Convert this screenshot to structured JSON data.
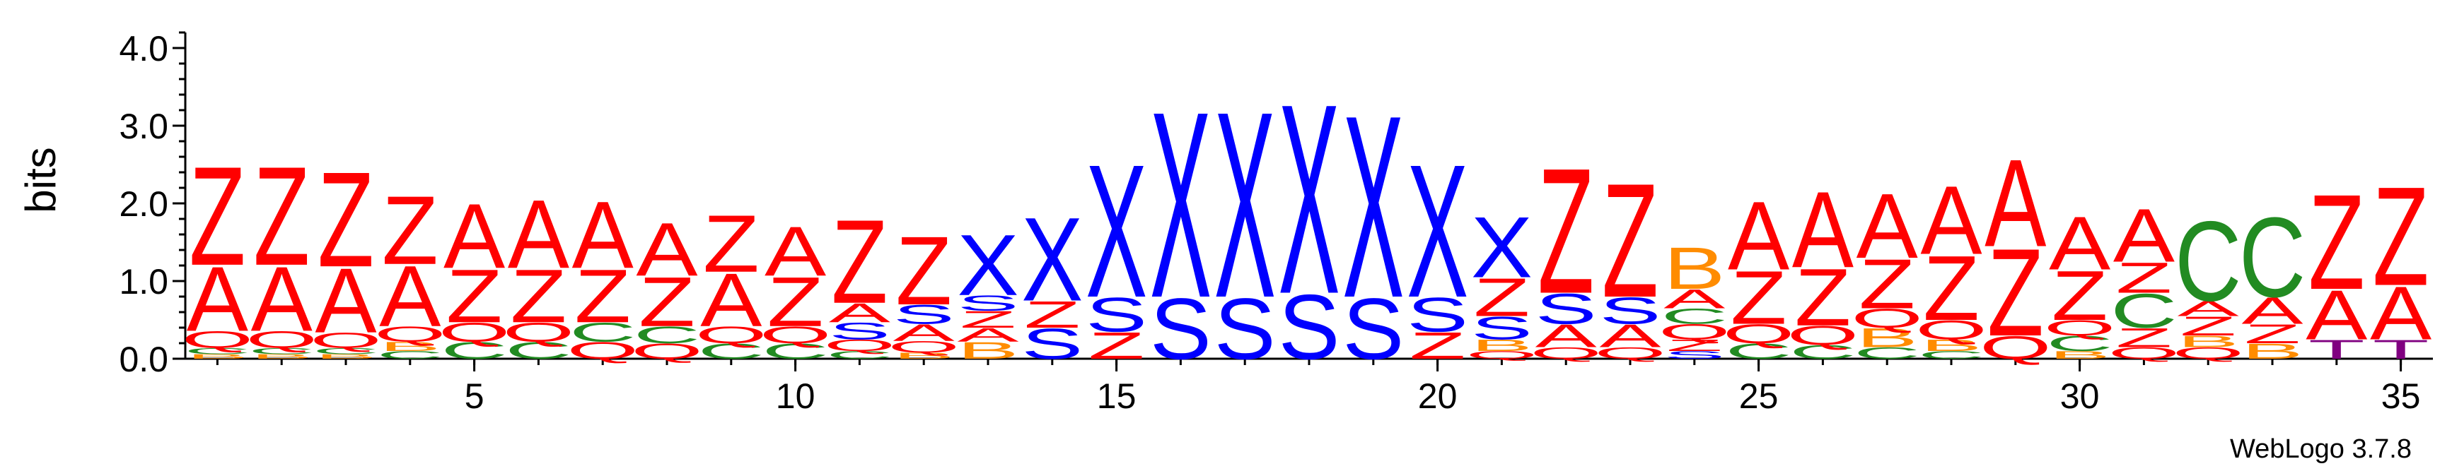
{
  "chart_data": {
    "type": "sequence-logo",
    "ylabel": "bits",
    "ylim": [
      0,
      4.2
    ],
    "yticks": [
      "0.0",
      "1.0",
      "2.0",
      "3.0",
      "4.0"
    ],
    "xticks": [
      5,
      10,
      15,
      20,
      25,
      30,
      35
    ],
    "credit": "WebLogo 3.7.8",
    "colors": {
      "Z": "#ff0000",
      "A": "#ff0000",
      "Q": "#ff0000",
      "S": "#0000ff",
      "X": "#0000ff",
      "C": "#228b22",
      "B": "#ff8c00",
      "T": "#800080"
    },
    "positions": [
      {
        "pos": 1,
        "stack": [
          [
            "B",
            0.06
          ],
          [
            "C",
            0.08
          ],
          [
            "Q",
            0.22
          ],
          [
            "A",
            0.85
          ],
          [
            "Z",
            1.3
          ]
        ]
      },
      {
        "pos": 2,
        "stack": [
          [
            "B",
            0.06
          ],
          [
            "C",
            0.08
          ],
          [
            "Q",
            0.22
          ],
          [
            "A",
            0.85
          ],
          [
            "Z",
            1.3
          ]
        ]
      },
      {
        "pos": 3,
        "stack": [
          [
            "B",
            0.06
          ],
          [
            "C",
            0.08
          ],
          [
            "Q",
            0.2
          ],
          [
            "A",
            0.85
          ],
          [
            "Z",
            1.25
          ]
        ]
      },
      {
        "pos": 4,
        "stack": [
          [
            "C",
            0.1
          ],
          [
            "B",
            0.12
          ],
          [
            "Q",
            0.2
          ],
          [
            "A",
            0.8
          ],
          [
            "Z",
            0.9
          ]
        ]
      },
      {
        "pos": 5,
        "stack": [
          [
            "C",
            0.22
          ],
          [
            "Q",
            0.25
          ],
          [
            "Z",
            0.7
          ],
          [
            "A",
            0.85
          ]
        ]
      },
      {
        "pos": 6,
        "stack": [
          [
            "C",
            0.22
          ],
          [
            "Q",
            0.25
          ],
          [
            "Z",
            0.7
          ],
          [
            "A",
            0.9
          ]
        ]
      },
      {
        "pos": 7,
        "stack": [
          [
            "Q",
            0.22
          ],
          [
            "C",
            0.25
          ],
          [
            "Z",
            0.7
          ],
          [
            "A",
            0.88
          ]
        ]
      },
      {
        "pos": 8,
        "stack": [
          [
            "Q",
            0.2
          ],
          [
            "C",
            0.22
          ],
          [
            "Z",
            0.65
          ],
          [
            "A",
            0.7
          ]
        ]
      },
      {
        "pos": 9,
        "stack": [
          [
            "C",
            0.2
          ],
          [
            "Q",
            0.22
          ],
          [
            "A",
            0.7
          ],
          [
            "Z",
            0.75
          ]
        ]
      },
      {
        "pos": 10,
        "stack": [
          [
            "C",
            0.2
          ],
          [
            "Q",
            0.22
          ],
          [
            "Z",
            0.65
          ],
          [
            "A",
            0.65
          ]
        ]
      },
      {
        "pos": 11,
        "stack": [
          [
            "C",
            0.1
          ],
          [
            "Q",
            0.15
          ],
          [
            "S",
            0.22
          ],
          [
            "A",
            0.25
          ],
          [
            "Z",
            1.1
          ]
        ]
      },
      {
        "pos": 12,
        "stack": [
          [
            "B",
            0.08
          ],
          [
            "Q",
            0.15
          ],
          [
            "A",
            0.22
          ],
          [
            "S",
            0.25
          ],
          [
            "Z",
            0.9
          ]
        ]
      },
      {
        "pos": 13,
        "stack": [
          [
            "B",
            0.22
          ],
          [
            "A",
            0.18
          ],
          [
            "Z",
            0.22
          ],
          [
            "S",
            0.2
          ],
          [
            "X",
            0.8
          ]
        ]
      },
      {
        "pos": 14,
        "stack": [
          [
            "S",
            0.4
          ],
          [
            "Z",
            0.35
          ],
          [
            "X",
            1.1
          ]
        ]
      },
      {
        "pos": 15,
        "stack": [
          [
            "Z",
            0.35
          ],
          [
            "S",
            0.45
          ],
          [
            "X",
            1.75
          ]
        ]
      },
      {
        "pos": 16,
        "stack": [
          [
            "S",
            0.8
          ],
          [
            "X",
            2.45
          ]
        ]
      },
      {
        "pos": 17,
        "stack": [
          [
            "S",
            0.8
          ],
          [
            "X",
            2.45
          ]
        ]
      },
      {
        "pos": 18,
        "stack": [
          [
            "S",
            0.85
          ],
          [
            "X",
            2.5
          ]
        ]
      },
      {
        "pos": 19,
        "stack": [
          [
            "S",
            0.8
          ],
          [
            "X",
            2.4
          ]
        ]
      },
      {
        "pos": 20,
        "stack": [
          [
            "Z",
            0.35
          ],
          [
            "S",
            0.45
          ],
          [
            "X",
            1.75
          ]
        ]
      },
      {
        "pos": 21,
        "stack": [
          [
            "Q",
            0.1
          ],
          [
            "B",
            0.15
          ],
          [
            "S",
            0.3
          ],
          [
            "Z",
            0.5
          ],
          [
            "X",
            0.8
          ]
        ]
      },
      {
        "pos": 22,
        "stack": [
          [
            "Q",
            0.15
          ],
          [
            "A",
            0.3
          ],
          [
            "S",
            0.4
          ],
          [
            "Z",
            1.65
          ]
        ]
      },
      {
        "pos": 23,
        "stack": [
          [
            "Q",
            0.15
          ],
          [
            "A",
            0.3
          ],
          [
            "S",
            0.35
          ],
          [
            "Z",
            1.5
          ]
        ]
      },
      {
        "pos": 24,
        "stack": [
          [
            "S",
            0.1
          ],
          [
            "Z",
            0.15
          ],
          [
            "Q",
            0.2
          ],
          [
            "C",
            0.2
          ],
          [
            "A",
            0.25
          ],
          [
            "B",
            0.55
          ]
        ]
      },
      {
        "pos": 25,
        "stack": [
          [
            "C",
            0.2
          ],
          [
            "Q",
            0.25
          ],
          [
            "Z",
            0.7
          ],
          [
            "A",
            0.9
          ]
        ]
      },
      {
        "pos": 26,
        "stack": [
          [
            "C",
            0.18
          ],
          [
            "Q",
            0.25
          ],
          [
            "Z",
            0.75
          ],
          [
            "A",
            1.0
          ]
        ]
      },
      {
        "pos": 27,
        "stack": [
          [
            "C",
            0.15
          ],
          [
            "B",
            0.25
          ],
          [
            "Q",
            0.25
          ],
          [
            "Z",
            0.65
          ],
          [
            "A",
            0.85
          ]
        ]
      },
      {
        "pos": 28,
        "stack": [
          [
            "C",
            0.1
          ],
          [
            "B",
            0.15
          ],
          [
            "Q",
            0.25
          ],
          [
            "Z",
            0.85
          ],
          [
            "A",
            0.9
          ]
        ]
      },
      {
        "pos": 29,
        "stack": [
          [
            "Q",
            0.3
          ],
          [
            "Z",
            1.15
          ],
          [
            "A",
            1.15
          ]
        ]
      },
      {
        "pos": 30,
        "stack": [
          [
            "B",
            0.1
          ],
          [
            "C",
            0.2
          ],
          [
            "Q",
            0.2
          ],
          [
            "Z",
            0.65
          ],
          [
            "A",
            0.7
          ]
        ]
      },
      {
        "pos": 31,
        "stack": [
          [
            "Q",
            0.15
          ],
          [
            "Z",
            0.25
          ],
          [
            "C",
            0.45
          ],
          [
            "Z",
            0.4
          ],
          [
            "A",
            0.7
          ]
        ]
      },
      {
        "pos": 32,
        "stack": [
          [
            "Q",
            0.15
          ],
          [
            "B",
            0.15
          ],
          [
            "Z",
            0.25
          ],
          [
            "A",
            0.2
          ],
          [
            "C",
            1.05
          ]
        ]
      },
      {
        "pos": 33,
        "stack": [
          [
            "B",
            0.2
          ],
          [
            "Z",
            0.25
          ],
          [
            "A",
            0.35
          ],
          [
            "C",
            1.05
          ]
        ]
      },
      {
        "pos": 34,
        "stack": [
          [
            "T",
            0.25
          ],
          [
            "A",
            0.65
          ],
          [
            "Z",
            1.25
          ]
        ]
      },
      {
        "pos": 35,
        "stack": [
          [
            "T",
            0.25
          ],
          [
            "A",
            0.7
          ],
          [
            "Z",
            1.3
          ]
        ]
      }
    ]
  }
}
